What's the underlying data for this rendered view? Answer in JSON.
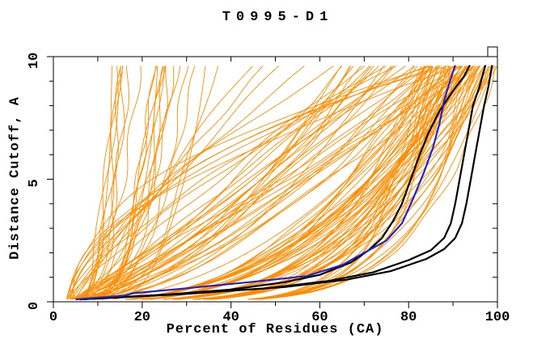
{
  "chart_data": {
    "type": "line",
    "title": "T0995-D1",
    "xlabel": "Percent of Residues (CA)",
    "ylabel": "Distance Cutoff, A",
    "xlim": [
      0,
      100
    ],
    "ylim": [
      0,
      10
    ],
    "x_ticks_major": [
      0,
      20,
      40,
      60,
      80,
      100
    ],
    "x_ticks_minor": [
      10,
      30,
      50,
      70,
      90
    ],
    "y_ticks_major": [
      0,
      5,
      10
    ],
    "y_ticks_minor": [
      1,
      2,
      3,
      4,
      6,
      7,
      8,
      9
    ],
    "grid": false,
    "legend": null,
    "curve_y_min": 0.1,
    "curve_y_max": 9.65,
    "curve_model": "x(y) = x0 + (xe - x0) * (y / 9.7)^k  (per-curve params [xe,k]; all curves start near x0~4% at cutoff 0)",
    "colors": {
      "predictions": "#ff8c00",
      "reference": "#000000",
      "highlight": "#2222cc",
      "frame": "#000000",
      "background": "#ffffff"
    },
    "series": {
      "predictions": {
        "name": "prediction GDT curves (orange)",
        "curves": [
          [
            84,
            0.15
          ],
          [
            86,
            0.22
          ],
          [
            88,
            0.29
          ],
          [
            90,
            0.36
          ],
          [
            92,
            0.43
          ],
          [
            94,
            0.18
          ],
          [
            96,
            0.26
          ],
          [
            98,
            0.33
          ],
          [
            100,
            0.4
          ],
          [
            85,
            0.15
          ],
          [
            87,
            0.22
          ],
          [
            89,
            0.29
          ],
          [
            91,
            0.36
          ],
          [
            93,
            0.43
          ],
          [
            95,
            0.18
          ],
          [
            97,
            0.26
          ],
          [
            99,
            0.33
          ],
          [
            84,
            0.4
          ],
          [
            86,
            0.15
          ],
          [
            88,
            0.22
          ],
          [
            90,
            0.29
          ],
          [
            92,
            0.36
          ],
          [
            94,
            0.43
          ],
          [
            96,
            0.18
          ],
          [
            98,
            0.26
          ],
          [
            100,
            0.33
          ],
          [
            85,
            0.4
          ],
          [
            87,
            0.15
          ],
          [
            89,
            0.22
          ],
          [
            91,
            0.29
          ],
          [
            93,
            0.36
          ],
          [
            95,
            0.43
          ],
          [
            97,
            0.18
          ],
          [
            99,
            0.26
          ],
          [
            84,
            0.33
          ],
          [
            86,
            0.4
          ],
          [
            88,
            0.15
          ],
          [
            90,
            0.22
          ],
          [
            92,
            0.29
          ],
          [
            94,
            0.36
          ],
          [
            96,
            0.43
          ],
          [
            98,
            0.18
          ],
          [
            100,
            0.26
          ],
          [
            85,
            0.33
          ],
          [
            87,
            0.4
          ],
          [
            89,
            0.15
          ],
          [
            91,
            0.22
          ],
          [
            93,
            0.29
          ],
          [
            95,
            0.36
          ],
          [
            97,
            0.43
          ],
          [
            99,
            0.18
          ],
          [
            84,
            0.26
          ],
          [
            86,
            0.33
          ],
          [
            88,
            0.4
          ],
          [
            90,
            0.15
          ],
          [
            92,
            0.22
          ],
          [
            94,
            0.29
          ],
          [
            96,
            0.36
          ],
          [
            98,
            0.43
          ],
          [
            100,
            0.18
          ],
          [
            65,
            0.5
          ],
          [
            69,
            0.62
          ],
          [
            73,
            0.74
          ],
          [
            77,
            0.86
          ],
          [
            81,
            0.95
          ],
          [
            85,
            0.55
          ],
          [
            89,
            0.68
          ],
          [
            93,
            0.8
          ],
          [
            96,
            0.92
          ],
          [
            67,
            0.58
          ],
          [
            75,
            0.5
          ],
          [
            83,
            0.62
          ],
          [
            91,
            0.74
          ],
          [
            71,
            0.86
          ],
          [
            79,
            0.95
          ],
          [
            87,
            0.55
          ],
          [
            95,
            0.68
          ],
          [
            66,
            0.8
          ],
          [
            74,
            0.92
          ],
          [
            82,
            0.58
          ],
          [
            90,
            0.5
          ],
          [
            68,
            0.62
          ],
          [
            76,
            0.74
          ],
          [
            84,
            0.86
          ],
          [
            92,
            0.95
          ],
          [
            70,
            0.55
          ],
          [
            78,
            0.68
          ],
          [
            86,
            0.8
          ],
          [
            94,
            0.92
          ],
          [
            72,
            0.58
          ],
          [
            13.5,
            0.25
          ],
          [
            14,
            0.32
          ],
          [
            14.5,
            0.4
          ],
          [
            15,
            0.28
          ],
          [
            15.5,
            0.35
          ],
          [
            16,
            0.25
          ],
          [
            17,
            0.32
          ],
          [
            19.5,
            0.4
          ],
          [
            22.5,
            0.28
          ],
          [
            23,
            0.35
          ],
          [
            23.5,
            0.25
          ],
          [
            24,
            0.32
          ],
          [
            24.5,
            0.4
          ],
          [
            25,
            0.28
          ],
          [
            25.5,
            0.35
          ],
          [
            26,
            0.25
          ],
          [
            27,
            0.32
          ],
          [
            28,
            0.4
          ],
          [
            30,
            0.28
          ],
          [
            32,
            0.35
          ],
          [
            34,
            0.25
          ],
          [
            36,
            0.32
          ],
          [
            45,
            1.0
          ],
          [
            52,
            1.15
          ],
          [
            58,
            1.3
          ],
          [
            64,
            1.45
          ],
          [
            70,
            1.05
          ],
          [
            75,
            1.2
          ],
          [
            78,
            1.35
          ],
          [
            48,
            1.1
          ],
          [
            85,
            1.7
          ],
          [
            88,
            1.9
          ],
          [
            91,
            2.1
          ],
          [
            94,
            1.8
          ],
          [
            87,
            2.2
          ]
        ]
      },
      "reference": {
        "name": "reference model curves (black)",
        "curves": [
          [
            [
              6,
              0.1
            ],
            [
              26,
              0.3
            ],
            [
              40,
              0.5
            ],
            [
              52,
              0.8
            ],
            [
              60,
              1.1
            ],
            [
              67,
              1.6
            ],
            [
              71,
              2.1
            ],
            [
              74,
              2.6
            ],
            [
              76.5,
              3.3
            ],
            [
              78.5,
              4.0
            ],
            [
              80.5,
              5.0
            ],
            [
              82.5,
              6.0
            ],
            [
              84.5,
              6.9
            ],
            [
              87,
              7.8
            ],
            [
              90,
              8.6
            ],
            [
              92.5,
              9.2
            ],
            [
              93.8,
              9.65
            ]
          ],
          [
            [
              6,
              0.1
            ],
            [
              27,
              0.3
            ],
            [
              48,
              0.55
            ],
            [
              62,
              0.85
            ],
            [
              72,
              1.2
            ],
            [
              80,
              1.7
            ],
            [
              85,
              2.1
            ],
            [
              88,
              2.6
            ],
            [
              89.5,
              3.2
            ],
            [
              90.5,
              4.0
            ],
            [
              91.5,
              5.0
            ],
            [
              92.5,
              6.0
            ],
            [
              93.5,
              7.0
            ],
            [
              94.5,
              8.0
            ],
            [
              96,
              8.8
            ],
            [
              97.3,
              9.65
            ]
          ],
          [
            [
              6,
              0.1
            ],
            [
              28,
              0.3
            ],
            [
              52,
              0.6
            ],
            [
              66,
              0.9
            ],
            [
              76,
              1.25
            ],
            [
              84,
              1.75
            ],
            [
              88,
              2.15
            ],
            [
              90.5,
              2.6
            ],
            [
              92,
              3.2
            ],
            [
              93,
              4.0
            ],
            [
              94,
              5.0
            ],
            [
              95,
              6.0
            ],
            [
              96,
              7.0
            ],
            [
              97,
              8.0
            ],
            [
              98,
              8.8
            ],
            [
              98.8,
              9.65
            ]
          ]
        ]
      },
      "highlight": {
        "name": "highlighted model curve (blue)",
        "points": [
          [
            5,
            0.1
          ],
          [
            16,
            0.25
          ],
          [
            18,
            0.35
          ],
          [
            30,
            0.55
          ],
          [
            44,
            0.8
          ],
          [
            57,
            1.05
          ],
          [
            65,
            1.5
          ],
          [
            70,
            2.0
          ],
          [
            75,
            2.5
          ],
          [
            78.5,
            3.2
          ],
          [
            81,
            4.2
          ],
          [
            83.5,
            5.3
          ],
          [
            85.5,
            6.3
          ],
          [
            87,
            7.3
          ],
          [
            88,
            8.2
          ],
          [
            89.3,
            9.0
          ],
          [
            90.5,
            9.65
          ]
        ]
      }
    }
  }
}
